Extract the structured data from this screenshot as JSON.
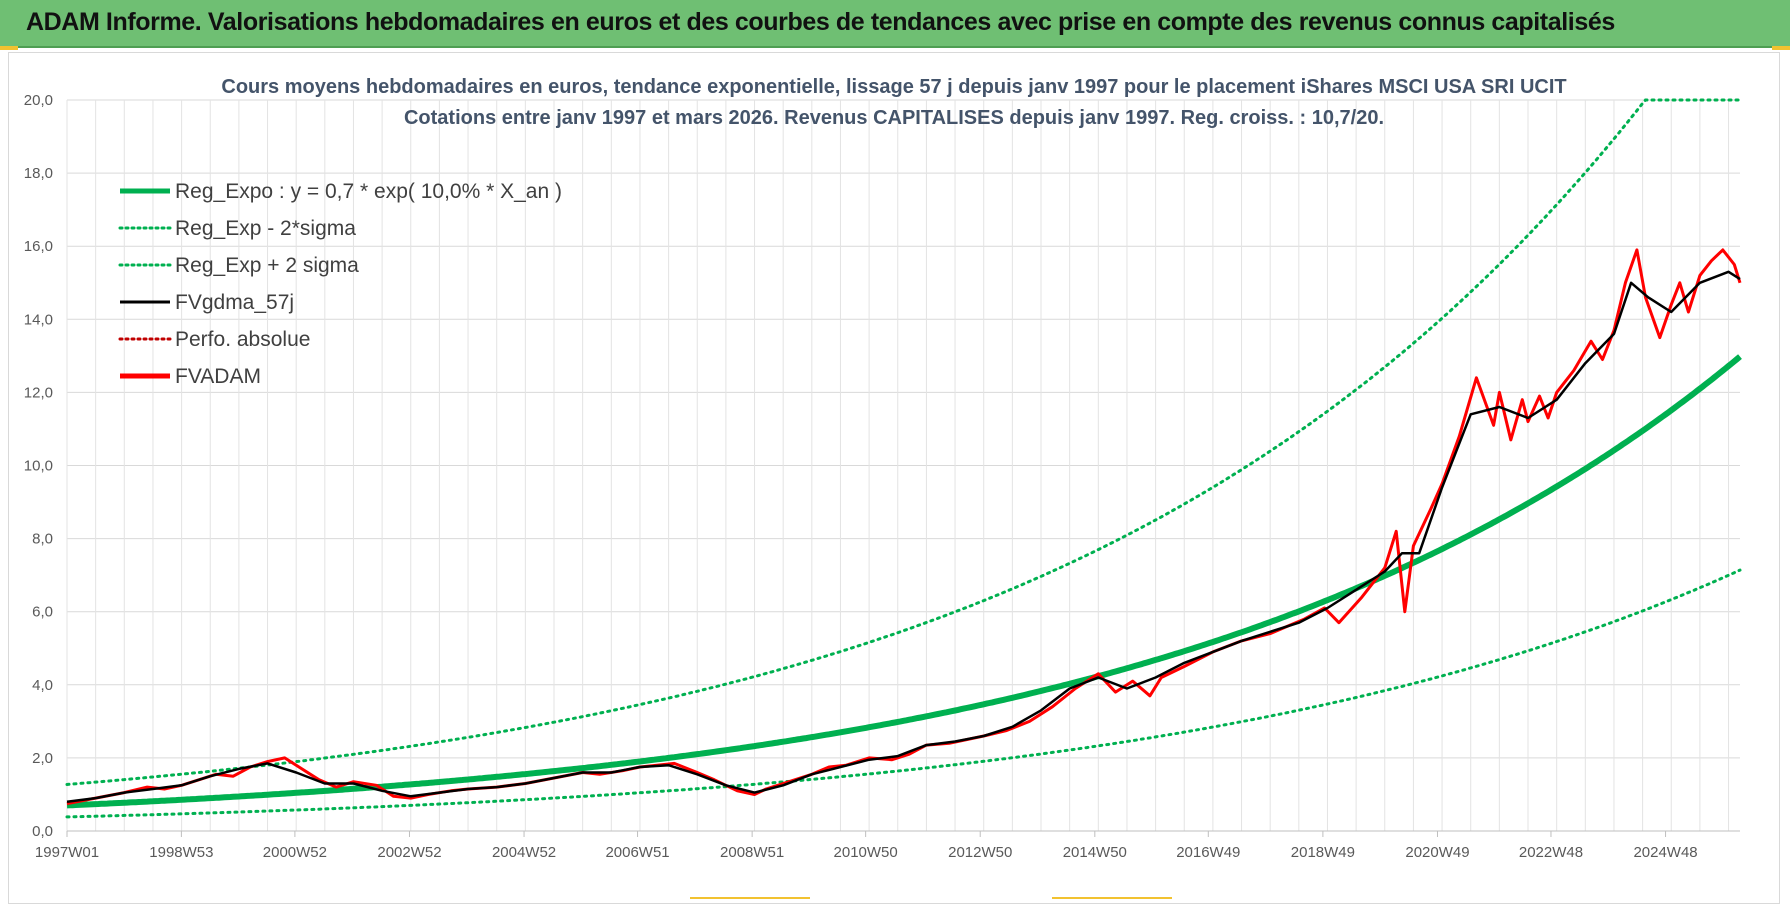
{
  "header": {
    "title": "ADAM Informe. Valorisations hebdomadaires en euros et des courbes de tendances avec prise en compte des revenus connus capitalisés"
  },
  "colors": {
    "header_bg": "#6fbf73",
    "trend": "#00b050",
    "gdma": "#000000",
    "fvadam": "#ff0000",
    "perfo": "#c00000"
  },
  "chart_data": {
    "type": "line",
    "title": "Cours moyens hebdomadaires en euros, tendance exponentielle, lissage 57 j depuis janv 1997 pour le placement iShares MSCI USA SRI UCIT",
    "subtitle": "Cotations entre janv 1997 et mars 2026. Revenus CAPITALISES depuis janv 1997. Reg. croiss. : 10,7/20.",
    "xlabel": "",
    "ylabel": "",
    "x_start": "1997W01",
    "x_end": "2026W11",
    "x_ticks": [
      "1997W01",
      "1998W53",
      "2000W52",
      "2002W52",
      "2004W52",
      "2006W51",
      "2008W51",
      "2010W50",
      "2012W50",
      "2014W50",
      "2016W49",
      "2018W49",
      "2020W49",
      "2022W48",
      "2024W48"
    ],
    "y_ticks": [
      "0,0",
      "2,0",
      "4,0",
      "6,0",
      "8,0",
      "10,0",
      "12,0",
      "14,0",
      "16,0",
      "18,0",
      "20,0"
    ],
    "ylim": [
      0,
      20
    ],
    "grid": true,
    "legend_position": "top-left",
    "trend_formula": {
      "a": 0.7,
      "rate": 0.1,
      "sigma_factor": 0.55,
      "cap": 20
    },
    "legend": [
      {
        "label": "Reg_Expo : y = 0,7 * exp( 10,0% *  X_an )",
        "style": "solid-thick",
        "color": "#00b050"
      },
      {
        "label": "Reg_Exp - 2*sigma",
        "style": "dotted",
        "color": "#00b050"
      },
      {
        "label": "Reg_Exp + 2 sigma",
        "style": "dotted",
        "color": "#00b050"
      },
      {
        "label": "FVgdma_57j",
        "style": "solid",
        "color": "#000000"
      },
      {
        "label": "Perfo. absolue",
        "style": "dotted",
        "color": "#c00000"
      },
      {
        "label": "FVADAM",
        "style": "solid-thick",
        "color": "#ff0000"
      }
    ],
    "series": [
      {
        "name": "FVADAM",
        "x": [
          1997.0,
          1997.5,
          1998.0,
          1998.4,
          1998.7,
          1999.0,
          1999.3,
          1999.6,
          1999.9,
          2000.2,
          2000.5,
          2000.8,
          2001.1,
          2001.4,
          2001.7,
          2002.0,
          2002.4,
          2002.7,
          2003.0,
          2003.3,
          2003.7,
          2004.0,
          2004.5,
          2005.0,
          2005.5,
          2006.0,
          2006.3,
          2006.7,
          2007.0,
          2007.3,
          2007.6,
          2008.0,
          2008.3,
          2008.7,
          2009.0,
          2009.2,
          2009.5,
          2010.0,
          2010.3,
          2010.6,
          2011.0,
          2011.4,
          2011.7,
          2012.0,
          2012.4,
          2012.7,
          2013.0,
          2013.4,
          2013.8,
          2014.2,
          2014.6,
          2015.0,
          2015.3,
          2015.6,
          2015.9,
          2016.1,
          2016.5,
          2017.0,
          2017.5,
          2018.0,
          2018.3,
          2018.6,
          2018.95,
          2019.2,
          2019.6,
          2020.0,
          2020.2,
          2020.35,
          2020.5,
          2020.8,
          2021.0,
          2021.3,
          2021.6,
          2021.9,
          2022.0,
          2022.2,
          2022.4,
          2022.5,
          2022.7,
          2022.85,
          2023.0,
          2023.3,
          2023.6,
          2023.8,
          2024.0,
          2024.2,
          2024.4,
          2024.55,
          2024.8,
          2025.0,
          2025.15,
          2025.3,
          2025.5,
          2025.7,
          2025.9,
          2026.1,
          2026.2
        ],
        "values": [
          0.75,
          0.9,
          1.05,
          1.2,
          1.15,
          1.25,
          1.4,
          1.55,
          1.5,
          1.75,
          1.9,
          2.0,
          1.7,
          1.4,
          1.2,
          1.35,
          1.25,
          0.95,
          0.9,
          1.0,
          1.1,
          1.15,
          1.2,
          1.3,
          1.45,
          1.6,
          1.55,
          1.65,
          1.75,
          1.8,
          1.85,
          1.6,
          1.4,
          1.1,
          1.0,
          1.15,
          1.3,
          1.55,
          1.75,
          1.8,
          2.0,
          1.95,
          2.1,
          2.35,
          2.4,
          2.5,
          2.6,
          2.75,
          3.0,
          3.4,
          3.9,
          4.3,
          3.8,
          4.1,
          3.7,
          4.2,
          4.5,
          4.9,
          5.2,
          5.4,
          5.6,
          5.8,
          6.1,
          5.7,
          6.4,
          7.2,
          8.2,
          6.0,
          7.8,
          8.8,
          9.5,
          10.8,
          12.4,
          11.1,
          12.0,
          10.7,
          11.8,
          11.2,
          11.9,
          11.3,
          12.0,
          12.6,
          13.4,
          12.9,
          13.7,
          15.0,
          15.9,
          14.6,
          13.5,
          14.4,
          15.0,
          14.2,
          15.2,
          15.6,
          15.9,
          15.5,
          15.0
        ]
      },
      {
        "name": "FVgdma_57j",
        "x": [
          1997.0,
          1997.5,
          1998.0,
          1998.5,
          1999.0,
          1999.5,
          2000.0,
          2000.5,
          2001.0,
          2001.5,
          2002.0,
          2002.5,
          2003.0,
          2003.5,
          2004.0,
          2004.5,
          2005.0,
          2005.5,
          2006.0,
          2006.5,
          2007.0,
          2007.5,
          2008.0,
          2008.5,
          2009.0,
          2009.5,
          2010.0,
          2010.5,
          2011.0,
          2011.5,
          2012.0,
          2012.5,
          2013.0,
          2013.5,
          2014.0,
          2014.5,
          2015.0,
          2015.5,
          2016.0,
          2016.5,
          2017.0,
          2017.5,
          2018.0,
          2018.5,
          2019.0,
          2019.5,
          2020.0,
          2020.3,
          2020.6,
          2021.0,
          2021.5,
          2022.0,
          2022.5,
          2023.0,
          2023.5,
          2024.0,
          2024.3,
          2024.6,
          2025.0,
          2025.5,
          2026.0,
          2026.2
        ],
        "values": [
          0.8,
          0.9,
          1.05,
          1.15,
          1.25,
          1.5,
          1.7,
          1.85,
          1.6,
          1.3,
          1.3,
          1.1,
          0.95,
          1.05,
          1.15,
          1.2,
          1.3,
          1.45,
          1.6,
          1.6,
          1.75,
          1.8,
          1.55,
          1.25,
          1.05,
          1.25,
          1.55,
          1.75,
          1.95,
          2.05,
          2.35,
          2.45,
          2.6,
          2.85,
          3.3,
          3.9,
          4.2,
          3.9,
          4.2,
          4.6,
          4.9,
          5.2,
          5.45,
          5.7,
          6.1,
          6.6,
          7.1,
          7.6,
          7.6,
          9.4,
          11.4,
          11.6,
          11.3,
          11.8,
          12.8,
          13.6,
          15.0,
          14.6,
          14.2,
          15.0,
          15.3,
          15.1
        ]
      }
    ]
  }
}
